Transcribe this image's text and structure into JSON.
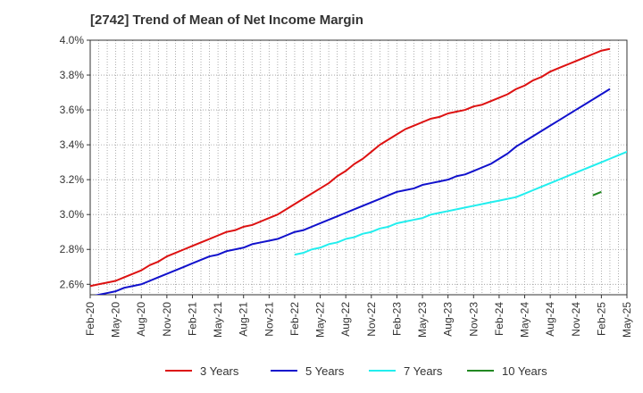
{
  "chart_data": {
    "type": "line",
    "title": "[2742]  Trend of Mean of Net Income Margin",
    "xlabel": "",
    "ylabel": "",
    "x_ticks": [
      "Feb-20",
      "May-20",
      "Aug-20",
      "Nov-20",
      "Feb-21",
      "May-21",
      "Aug-21",
      "Nov-21",
      "Feb-22",
      "May-22",
      "Aug-22",
      "Nov-22",
      "Feb-23",
      "May-23",
      "Aug-23",
      "Nov-23",
      "Feb-24",
      "May-24",
      "Aug-24",
      "Nov-24",
      "Feb-25",
      "May-25"
    ],
    "y_ticks": [
      "2.6%",
      "2.8%",
      "3.0%",
      "3.2%",
      "3.4%",
      "3.6%",
      "3.8%",
      "4.0%"
    ],
    "ylim": [
      2.54,
      4.0
    ],
    "grid": true,
    "legend_position": "bottom",
    "series": [
      {
        "name": "3 Years",
        "color": "#dd1111",
        "start": "Feb-20",
        "values": [
          2.59,
          2.6,
          2.61,
          2.62,
          2.64,
          2.66,
          2.68,
          2.71,
          2.73,
          2.76,
          2.78,
          2.8,
          2.82,
          2.84,
          2.86,
          2.88,
          2.9,
          2.91,
          2.93,
          2.94,
          2.96,
          2.98,
          3.0,
          3.03,
          3.06,
          3.09,
          3.12,
          3.15,
          3.18,
          3.22,
          3.25,
          3.29,
          3.32,
          3.36,
          3.4,
          3.43,
          3.46,
          3.49,
          3.51,
          3.53,
          3.55,
          3.56,
          3.58,
          3.59,
          3.6,
          3.62,
          3.63,
          3.65,
          3.67,
          3.69,
          3.72,
          3.74,
          3.77,
          3.79,
          3.82,
          3.84,
          3.86,
          3.88,
          3.9,
          3.92,
          3.94,
          3.95
        ]
      },
      {
        "name": "5 Years",
        "color": "#1111cc",
        "start": "Feb-20",
        "values": [
          2.53,
          2.54,
          2.55,
          2.56,
          2.58,
          2.59,
          2.6,
          2.62,
          2.64,
          2.66,
          2.68,
          2.7,
          2.72,
          2.74,
          2.76,
          2.77,
          2.79,
          2.8,
          2.81,
          2.83,
          2.84,
          2.85,
          2.86,
          2.88,
          2.9,
          2.91,
          2.93,
          2.95,
          2.97,
          2.99,
          3.01,
          3.03,
          3.05,
          3.07,
          3.09,
          3.11,
          3.13,
          3.14,
          3.15,
          3.17,
          3.18,
          3.19,
          3.2,
          3.22,
          3.23,
          3.25,
          3.27,
          3.29,
          3.32,
          3.35,
          3.39,
          3.42,
          3.45,
          3.48,
          3.51,
          3.54,
          3.57,
          3.6,
          3.63,
          3.66,
          3.69,
          3.72
        ]
      },
      {
        "name": "7 Years",
        "color": "#22eeee",
        "start": "Feb-22",
        "values": [
          2.77,
          2.78,
          2.8,
          2.81,
          2.83,
          2.84,
          2.86,
          2.87,
          2.89,
          2.9,
          2.92,
          2.93,
          2.95,
          2.96,
          2.97,
          2.98,
          3.0,
          3.01,
          3.02,
          3.03,
          3.04,
          3.05,
          3.06,
          3.07,
          3.08,
          3.09,
          3.1,
          3.12,
          3.14,
          3.16,
          3.18,
          3.2,
          3.22,
          3.24,
          3.26,
          3.28,
          3.3,
          3.32,
          3.34,
          3.36,
          3.38,
          3.4,
          3.41
        ]
      },
      {
        "name": "10 Years",
        "color": "#228822",
        "start": "Jan-25",
        "values": [
          3.11,
          3.13
        ]
      }
    ]
  }
}
